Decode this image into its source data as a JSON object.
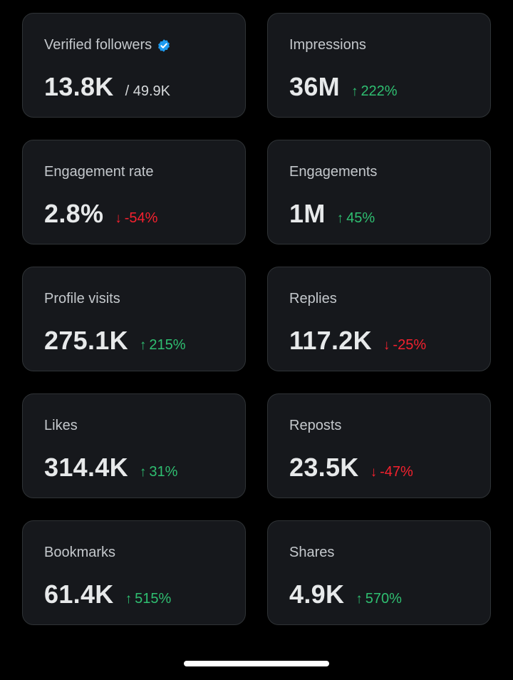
{
  "colors": {
    "background": "#000000",
    "card": "#16181c",
    "positive": "#2fbf71",
    "negative": "#f4212e",
    "verified": "#1d9bf0"
  },
  "cards": [
    {
      "label": "Verified followers",
      "value": "13.8K",
      "total": "/ 49.9K",
      "verified_icon": "verified-badge-icon"
    },
    {
      "label": "Impressions",
      "value": "36M",
      "delta": "222%",
      "direction": "up"
    },
    {
      "label": "Engagement rate",
      "value": "2.8%",
      "delta": "-54%",
      "direction": "down"
    },
    {
      "label": "Engagements",
      "value": "1M",
      "delta": "45%",
      "direction": "up"
    },
    {
      "label": "Profile visits",
      "value": "275.1K",
      "delta": "215%",
      "direction": "up"
    },
    {
      "label": "Replies",
      "value": "117.2K",
      "delta": "-25%",
      "direction": "down"
    },
    {
      "label": "Likes",
      "value": "314.4K",
      "delta": "31%",
      "direction": "up"
    },
    {
      "label": "Reposts",
      "value": "23.5K",
      "delta": "-47%",
      "direction": "down"
    },
    {
      "label": "Bookmarks",
      "value": "61.4K",
      "delta": "515%",
      "direction": "up"
    },
    {
      "label": "Shares",
      "value": "4.9K",
      "delta": "570%",
      "direction": "up"
    }
  ]
}
